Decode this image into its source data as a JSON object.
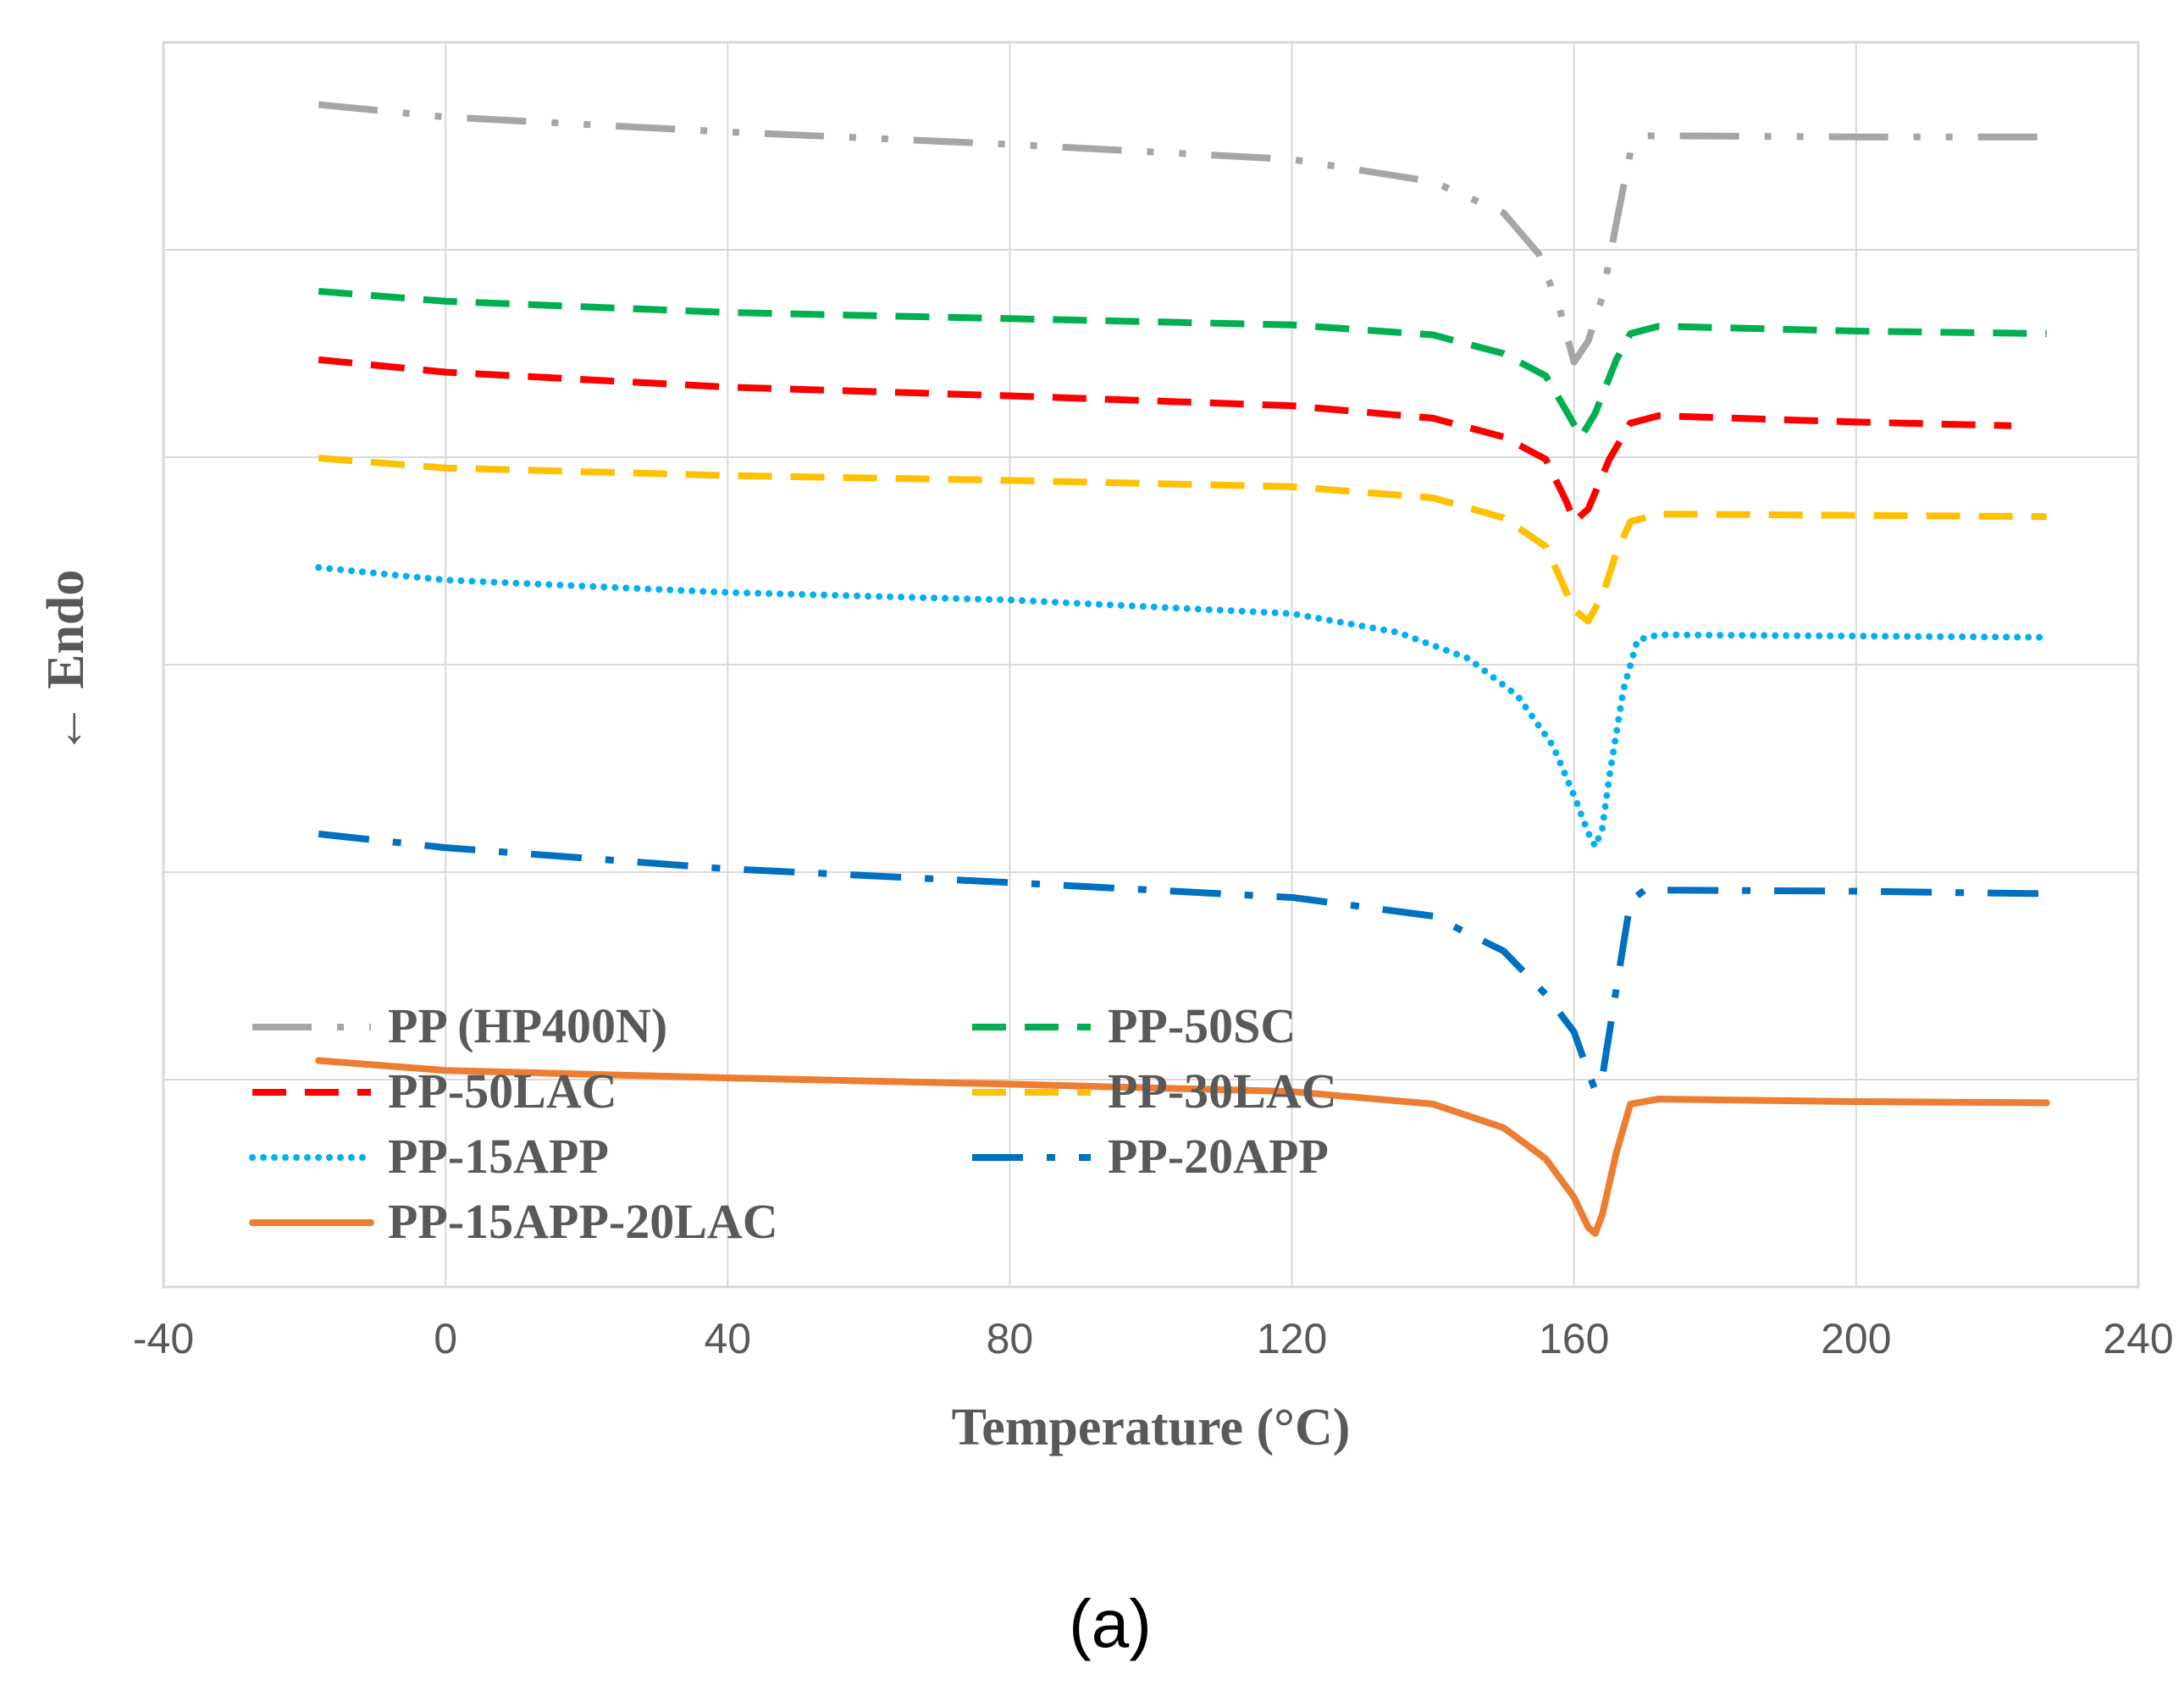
{
  "chart_data": {
    "type": "line",
    "xlabel": "Temperature (°C)",
    "ylabel": "← Endo",
    "xlim": [
      -40,
      240
    ],
    "xticks": [
      "-40",
      "0",
      "40",
      "80",
      "120",
      "160",
      "200",
      "240"
    ],
    "ylim": [
      0,
      100
    ],
    "grid": true,
    "yticks_shown": false,
    "legend_position": "bottom-left",
    "caption": "(a)",
    "series": [
      {
        "name": "PP (HP400N)",
        "color": "#a6a6a6",
        "style": "long-dash-dot-dot",
        "points": [
          [
            -18,
            95.0
          ],
          [
            0,
            94.0
          ],
          [
            40,
            92.8
          ],
          [
            80,
            91.8
          ],
          [
            120,
            90.6
          ],
          [
            140,
            88.8
          ],
          [
            150,
            86.3
          ],
          [
            155,
            83.0
          ],
          [
            158,
            78.5
          ],
          [
            160,
            74.3
          ],
          [
            162,
            76.0
          ],
          [
            164,
            79.5
          ],
          [
            166,
            85.5
          ],
          [
            168,
            91.2
          ],
          [
            170,
            92.5
          ],
          [
            200,
            92.4
          ],
          [
            227,
            92.4
          ]
        ]
      },
      {
        "name": "PP-50SC",
        "color": "#00b050",
        "style": "dash",
        "points": [
          [
            -18,
            80.0
          ],
          [
            0,
            79.2
          ],
          [
            40,
            78.3
          ],
          [
            80,
            77.8
          ],
          [
            120,
            77.3
          ],
          [
            140,
            76.5
          ],
          [
            150,
            75.0
          ],
          [
            156,
            73.2
          ],
          [
            159,
            70.3
          ],
          [
            161,
            68.3
          ],
          [
            163,
            70.2
          ],
          [
            166,
            74.5
          ],
          [
            168,
            76.6
          ],
          [
            172,
            77.2
          ],
          [
            200,
            76.8
          ],
          [
            227,
            76.6
          ]
        ]
      },
      {
        "name": "PP-50LAC",
        "color": "#ff0000",
        "style": "dash",
        "points": [
          [
            -18,
            74.5
          ],
          [
            0,
            73.5
          ],
          [
            40,
            72.3
          ],
          [
            80,
            71.6
          ],
          [
            120,
            70.8
          ],
          [
            140,
            69.8
          ],
          [
            150,
            68.3
          ],
          [
            156,
            66.5
          ],
          [
            159,
            63.0
          ],
          [
            160,
            61.5
          ],
          [
            162,
            62.5
          ],
          [
            165,
            66.5
          ],
          [
            168,
            69.4
          ],
          [
            172,
            70.0
          ],
          [
            200,
            69.5
          ],
          [
            222,
            69.2
          ]
        ]
      },
      {
        "name": "PP-30LAC",
        "color": "#ffc000",
        "style": "dash",
        "points": [
          [
            -18,
            66.6
          ],
          [
            0,
            65.8
          ],
          [
            40,
            65.2
          ],
          [
            80,
            64.8
          ],
          [
            120,
            64.3
          ],
          [
            140,
            63.4
          ],
          [
            150,
            61.8
          ],
          [
            156,
            59.5
          ],
          [
            158,
            57.0
          ],
          [
            160,
            54.4
          ],
          [
            162,
            53.5
          ],
          [
            164,
            55.5
          ],
          [
            166,
            59.0
          ],
          [
            168,
            61.5
          ],
          [
            172,
            62.1
          ],
          [
            200,
            62.0
          ],
          [
            227,
            61.9
          ]
        ]
      },
      {
        "name": "PP-15APP",
        "color": "#00b0f0",
        "style": "dot",
        "points": [
          [
            -18,
            57.8
          ],
          [
            0,
            56.8
          ],
          [
            40,
            55.8
          ],
          [
            80,
            55.2
          ],
          [
            120,
            54.1
          ],
          [
            135,
            52.6
          ],
          [
            145,
            50.5
          ],
          [
            152,
            47.5
          ],
          [
            157,
            43.5
          ],
          [
            160,
            39.5
          ],
          [
            162,
            36.5
          ],
          [
            163,
            35.4
          ],
          [
            164,
            36.8
          ],
          [
            165,
            41.0
          ],
          [
            167,
            48.0
          ],
          [
            169,
            52.0
          ],
          [
            172,
            52.4
          ],
          [
            200,
            52.3
          ],
          [
            227,
            52.2
          ]
        ]
      },
      {
        "name": "PP-20APP",
        "color": "#0070c0",
        "style": "long-dash-dot",
        "points": [
          [
            -18,
            36.4
          ],
          [
            0,
            35.3
          ],
          [
            40,
            33.6
          ],
          [
            80,
            32.5
          ],
          [
            120,
            31.3
          ],
          [
            140,
            29.8
          ],
          [
            150,
            27.0
          ],
          [
            156,
            23.5
          ],
          [
            160,
            20.5
          ],
          [
            162,
            17.3
          ],
          [
            163,
            15.8
          ],
          [
            164,
            16.8
          ],
          [
            166,
            24.0
          ],
          [
            168,
            31.0
          ],
          [
            170,
            31.9
          ],
          [
            200,
            31.8
          ],
          [
            227,
            31.6
          ]
        ]
      },
      {
        "name": "PP-15APP-20LAC",
        "color": "#ed7d31",
        "style": "solid",
        "points": [
          [
            -18,
            18.2
          ],
          [
            0,
            17.4
          ],
          [
            40,
            16.8
          ],
          [
            80,
            16.3
          ],
          [
            120,
            15.7
          ],
          [
            140,
            14.7
          ],
          [
            150,
            12.8
          ],
          [
            156,
            10.3
          ],
          [
            160,
            7.2
          ],
          [
            162,
            4.8
          ],
          [
            163,
            4.3
          ],
          [
            164,
            5.8
          ],
          [
            166,
            10.8
          ],
          [
            168,
            14.7
          ],
          [
            172,
            15.1
          ],
          [
            200,
            14.9
          ],
          [
            227,
            14.8
          ]
        ]
      }
    ]
  }
}
